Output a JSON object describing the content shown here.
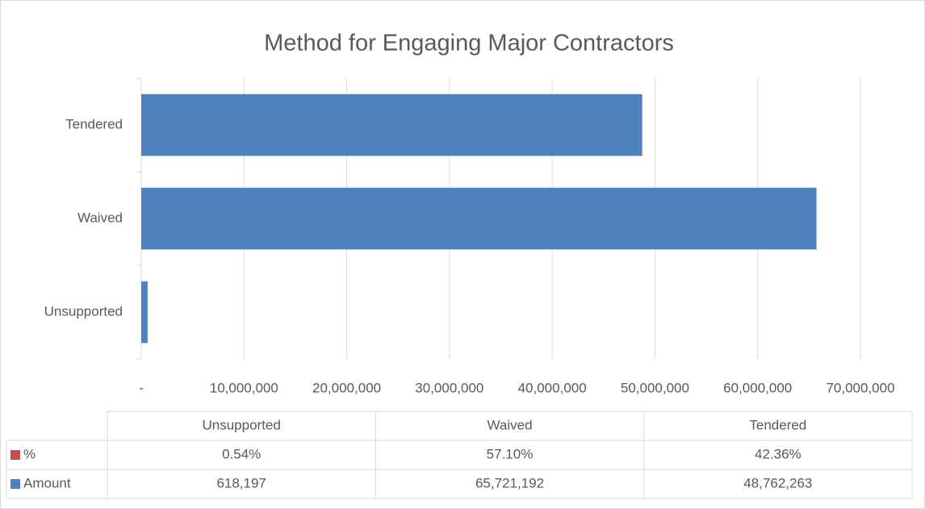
{
  "chart_data": {
    "type": "bar",
    "orientation": "horizontal",
    "title": "Method for Engaging Major Contractors",
    "categories": [
      "Unsupported",
      "Waived",
      "Tendered"
    ],
    "series": [
      {
        "name": "%",
        "color": "#c0504d",
        "values": [
          0.54,
          57.1,
          42.36
        ],
        "value_labels": [
          "0.54%",
          "57.10%",
          "42.36%"
        ]
      },
      {
        "name": "Amount",
        "color": "#4f81bd",
        "values": [
          618197,
          65721192,
          48762263
        ],
        "value_labels": [
          "618,197",
          "65,721,192",
          "48,762,263"
        ]
      }
    ],
    "xlim": [
      0,
      70000000
    ],
    "xticks": [
      {
        "value": 0,
        "label": "-"
      },
      {
        "value": 10000000,
        "label": "10,000,000"
      },
      {
        "value": 20000000,
        "label": "20,000,000"
      },
      {
        "value": 30000000,
        "label": "30,000,000"
      },
      {
        "value": 40000000,
        "label": "40,000,000"
      },
      {
        "value": 50000000,
        "label": "50,000,000"
      },
      {
        "value": 60000000,
        "label": "60,000,000"
      },
      {
        "value": 70000000,
        "label": "70,000,000"
      }
    ],
    "grid": true,
    "data_table": true
  }
}
